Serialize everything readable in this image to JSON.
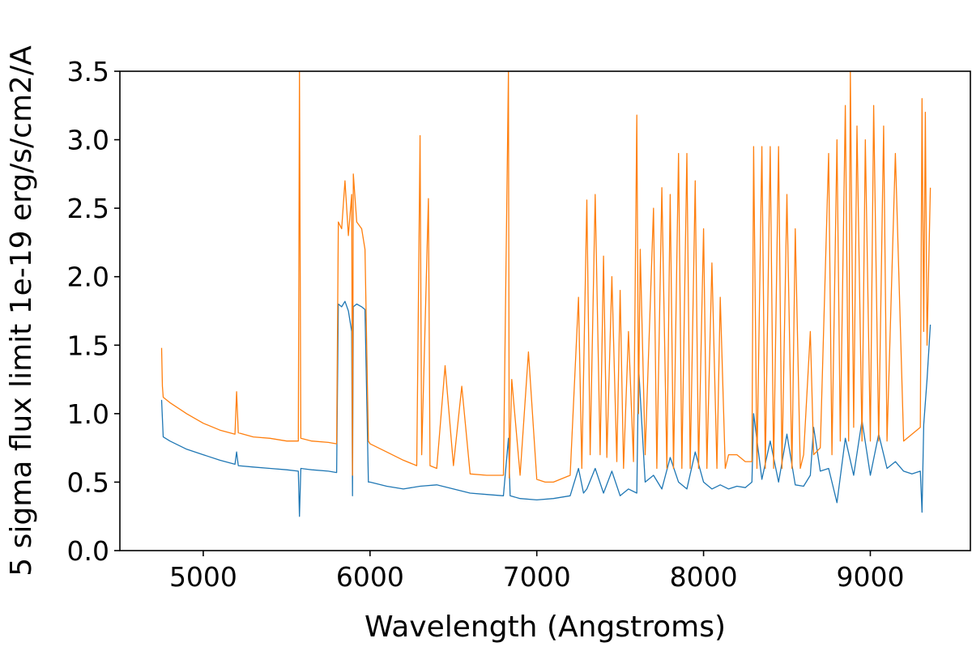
{
  "chart_data": {
    "type": "line",
    "title": "",
    "xlabel": "Wavelength (Angstroms)",
    "ylabel": "5 sigma flux limit 1e-19 erg/s/cm2/A",
    "xlim": [
      4500,
      9600
    ],
    "ylim": [
      0.0,
      3.5
    ],
    "x_ticks": [
      5000,
      6000,
      7000,
      8000,
      9000
    ],
    "x_tick_labels": [
      "5000",
      "6000",
      "7000",
      "8000",
      "9000"
    ],
    "y_ticks": [
      0.0,
      0.5,
      1.0,
      1.5,
      2.0,
      2.5,
      3.0,
      3.5
    ],
    "y_tick_labels": [
      "0.0",
      "0.5",
      "1.0",
      "1.5",
      "2.0",
      "2.5",
      "3.0",
      "3.5"
    ],
    "grid": false,
    "series": [
      {
        "color": "#1f77b4",
        "x": [
          4750,
          4760,
          4800,
          4900,
          5000,
          5100,
          5190,
          5200,
          5210,
          5300,
          5400,
          5500,
          5570,
          5577,
          5585,
          5650,
          5750,
          5800,
          5810,
          5830,
          5850,
          5870,
          5890,
          5895,
          5900,
          5920,
          5950,
          5970,
          5990,
          6000,
          6100,
          6200,
          6300,
          6400,
          6500,
          6600,
          6700,
          6800,
          6830,
          6840,
          6900,
          7000,
          7100,
          7200,
          7250,
          7280,
          7300,
          7350,
          7400,
          7450,
          7500,
          7550,
          7600,
          7610,
          7650,
          7700,
          7750,
          7800,
          7850,
          7900,
          7950,
          8000,
          8050,
          8100,
          8150,
          8200,
          8250,
          8290,
          8300,
          8350,
          8400,
          8450,
          8500,
          8550,
          8600,
          8640,
          8660,
          8700,
          8750,
          8800,
          8850,
          8900,
          8950,
          9000,
          9050,
          9100,
          9150,
          9200,
          9250,
          9300,
          9310,
          9320,
          9340,
          9360
        ],
        "y": [
          1.1,
          0.83,
          0.8,
          0.74,
          0.7,
          0.66,
          0.63,
          0.72,
          0.62,
          0.61,
          0.6,
          0.59,
          0.58,
          0.25,
          0.6,
          0.59,
          0.58,
          0.57,
          1.8,
          1.78,
          1.82,
          1.75,
          1.6,
          0.4,
          1.78,
          1.8,
          1.78,
          1.76,
          0.5,
          0.5,
          0.47,
          0.45,
          0.47,
          0.48,
          0.45,
          0.42,
          0.41,
          0.4,
          0.82,
          0.4,
          0.38,
          0.37,
          0.38,
          0.4,
          0.6,
          0.42,
          0.45,
          0.6,
          0.42,
          0.58,
          0.4,
          0.45,
          0.42,
          1.35,
          0.5,
          0.55,
          0.45,
          0.68,
          0.5,
          0.45,
          0.72,
          0.5,
          0.45,
          0.48,
          0.45,
          0.47,
          0.46,
          0.5,
          1.0,
          0.52,
          0.8,
          0.5,
          0.85,
          0.48,
          0.47,
          0.55,
          0.9,
          0.58,
          0.6,
          0.35,
          0.82,
          0.55,
          0.95,
          0.55,
          0.85,
          0.6,
          0.65,
          0.58,
          0.56,
          0.58,
          0.28,
          0.92,
          1.25,
          1.65
        ]
      },
      {
        "color": "#ff7f0e",
        "x": [
          4750,
          4755,
          4760,
          4800,
          4900,
          5000,
          5100,
          5190,
          5200,
          5210,
          5300,
          5400,
          5500,
          5570,
          5577,
          5585,
          5650,
          5750,
          5800,
          5810,
          5830,
          5850,
          5870,
          5890,
          5895,
          5900,
          5920,
          5950,
          5970,
          5990,
          6000,
          6100,
          6200,
          6280,
          6300,
          6310,
          6350,
          6360,
          6400,
          6450,
          6500,
          6550,
          6600,
          6700,
          6800,
          6830,
          6835,
          6850,
          6900,
          6950,
          7000,
          7050,
          7100,
          7200,
          7250,
          7270,
          7300,
          7320,
          7350,
          7380,
          7400,
          7420,
          7450,
          7480,
          7500,
          7520,
          7550,
          7580,
          7600,
          7610,
          7620,
          7650,
          7700,
          7720,
          7750,
          7780,
          7800,
          7820,
          7850,
          7870,
          7900,
          7920,
          7950,
          7970,
          8000,
          8020,
          8050,
          8080,
          8100,
          8130,
          8150,
          8200,
          8250,
          8290,
          8300,
          8320,
          8350,
          8370,
          8400,
          8420,
          8450,
          8470,
          8500,
          8530,
          8550,
          8580,
          8600,
          8640,
          8660,
          8700,
          8750,
          8770,
          8800,
          8820,
          8850,
          8870,
          8880,
          8900,
          8920,
          8950,
          8970,
          9000,
          9020,
          9050,
          9080,
          9100,
          9150,
          9200,
          9250,
          9300,
          9310,
          9320,
          9330,
          9340,
          9360
        ],
        "y": [
          1.48,
          1.2,
          1.12,
          1.08,
          1.0,
          0.93,
          0.88,
          0.85,
          1.16,
          0.86,
          0.83,
          0.82,
          0.8,
          0.8,
          3.5,
          0.82,
          0.8,
          0.79,
          0.78,
          2.4,
          2.35,
          2.7,
          2.3,
          2.6,
          0.55,
          2.75,
          2.4,
          2.35,
          2.2,
          0.8,
          0.78,
          0.72,
          0.66,
          0.62,
          3.03,
          0.7,
          2.57,
          0.62,
          0.6,
          1.35,
          0.62,
          1.2,
          0.56,
          0.55,
          0.55,
          3.5,
          0.53,
          1.25,
          0.55,
          1.45,
          0.52,
          0.5,
          0.5,
          0.55,
          1.85,
          0.6,
          2.56,
          0.7,
          2.6,
          0.7,
          2.15,
          0.68,
          2.0,
          0.65,
          1.9,
          0.6,
          1.6,
          0.65,
          3.18,
          1.0,
          2.2,
          0.7,
          2.5,
          0.6,
          2.65,
          0.6,
          2.6,
          0.6,
          2.9,
          0.6,
          2.9,
          0.6,
          2.7,
          0.6,
          2.35,
          0.6,
          2.1,
          0.6,
          1.85,
          0.6,
          0.7,
          0.7,
          0.65,
          0.65,
          2.95,
          0.6,
          2.95,
          0.6,
          2.95,
          0.6,
          2.95,
          0.6,
          2.6,
          0.6,
          2.35,
          0.6,
          0.7,
          1.6,
          0.7,
          0.75,
          2.9,
          0.7,
          3.0,
          0.8,
          3.25,
          0.8,
          3.5,
          0.9,
          3.1,
          0.8,
          3.0,
          0.8,
          3.25,
          0.8,
          3.1,
          0.8,
          2.9,
          0.8,
          0.85,
          0.9,
          3.3,
          1.6,
          3.2,
          1.5,
          2.65
        ]
      }
    ]
  }
}
